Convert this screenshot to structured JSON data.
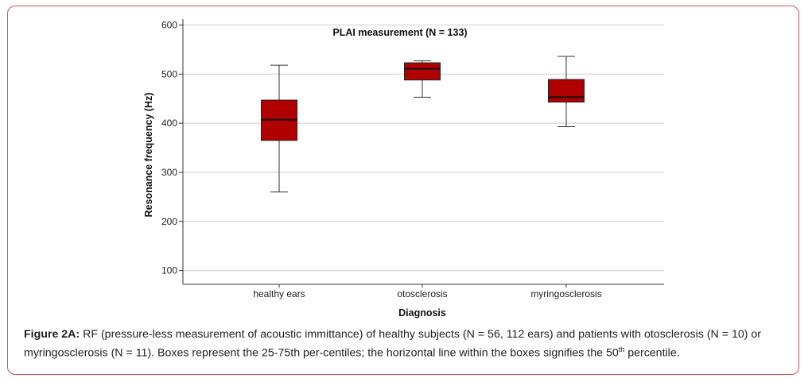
{
  "chart_data": {
    "type": "boxplot",
    "title": "PLAI measurement (N = 133)",
    "xlabel": "Diagnosis",
    "ylabel": "Resonance frequency (Hz)",
    "ylim": [
      72,
      612
    ],
    "yticks": [
      100,
      200,
      300,
      400,
      500,
      600
    ],
    "grid": true,
    "categories": [
      "healthy ears",
      "otosclerosis",
      "myringosclerosis"
    ],
    "series": [
      {
        "category": "healthy ears",
        "min": 260,
        "q1": 365,
        "median": 407,
        "q3": 447,
        "max": 518
      },
      {
        "category": "otosclerosis",
        "min": 453,
        "q1": 488,
        "median": 511,
        "q3": 523,
        "max": 527
      },
      {
        "category": "myringosclerosis",
        "min": 393,
        "q1": 443,
        "median": 453,
        "q3": 489,
        "max": 536
      }
    ],
    "box_color": "#b00000"
  },
  "caption": {
    "label": "Figure 2A:",
    "text_before": " RF (pressure-less measurement of acoustic immittance) of healthy subjects (N = 56, 112 ears) and patients with otosclerosis (N = 10) or myringosclerosis (N = 11). Boxes represent the 25-75th per-centiles; the horizontal line within the boxes signifies the 50",
    "superscript": "th",
    "text_after": " percentile."
  }
}
